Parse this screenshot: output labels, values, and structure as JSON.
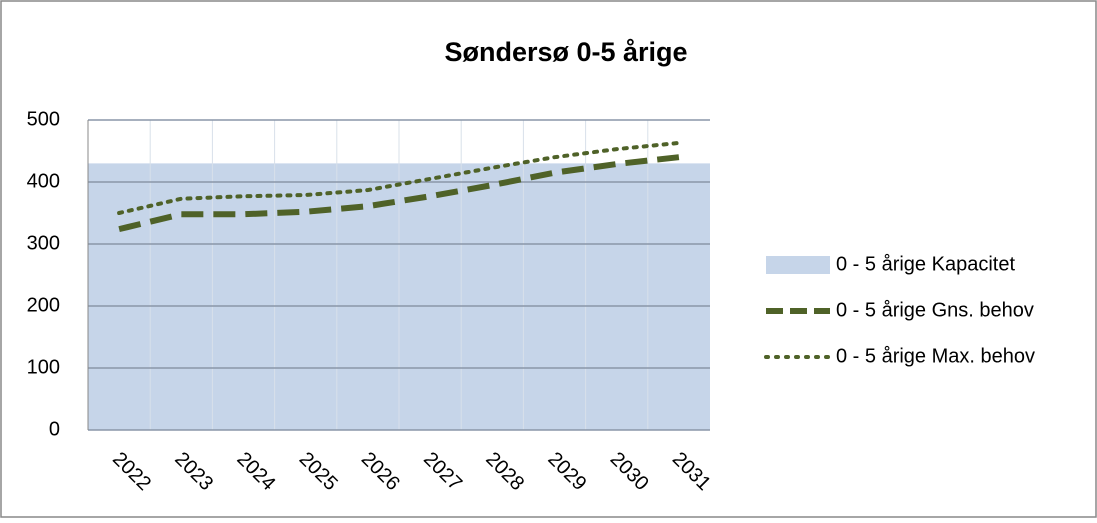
{
  "chart_data": {
    "type": "line",
    "title": "Søndersø 0-5 årige",
    "categories": [
      "2022",
      "2023",
      "2024",
      "2025",
      "2026",
      "2027",
      "2028",
      "2029",
      "2030",
      "2031"
    ],
    "series": [
      {
        "name": "0 - 5 årige Kapacitet",
        "kind": "area",
        "color": "#c6d5e9",
        "values": [
          430,
          430,
          430,
          430,
          430,
          430,
          430,
          430,
          430,
          430
        ]
      },
      {
        "name": "0 - 5 årige Gns. behov",
        "kind": "dashed",
        "color": "#4f6228",
        "values": [
          324,
          348,
          348,
          352,
          361,
          377,
          395,
          415,
          429,
          440
        ]
      },
      {
        "name": "0 - 5 årige Max. behov",
        "kind": "dotted",
        "color": "#4f6228",
        "values": [
          350,
          373,
          377,
          379,
          387,
          405,
          423,
          440,
          453,
          463
        ]
      }
    ],
    "ylim": [
      0,
      500
    ],
    "yticks": [
      0,
      100,
      200,
      300,
      400,
      500
    ],
    "grid": true,
    "legend": "right"
  }
}
